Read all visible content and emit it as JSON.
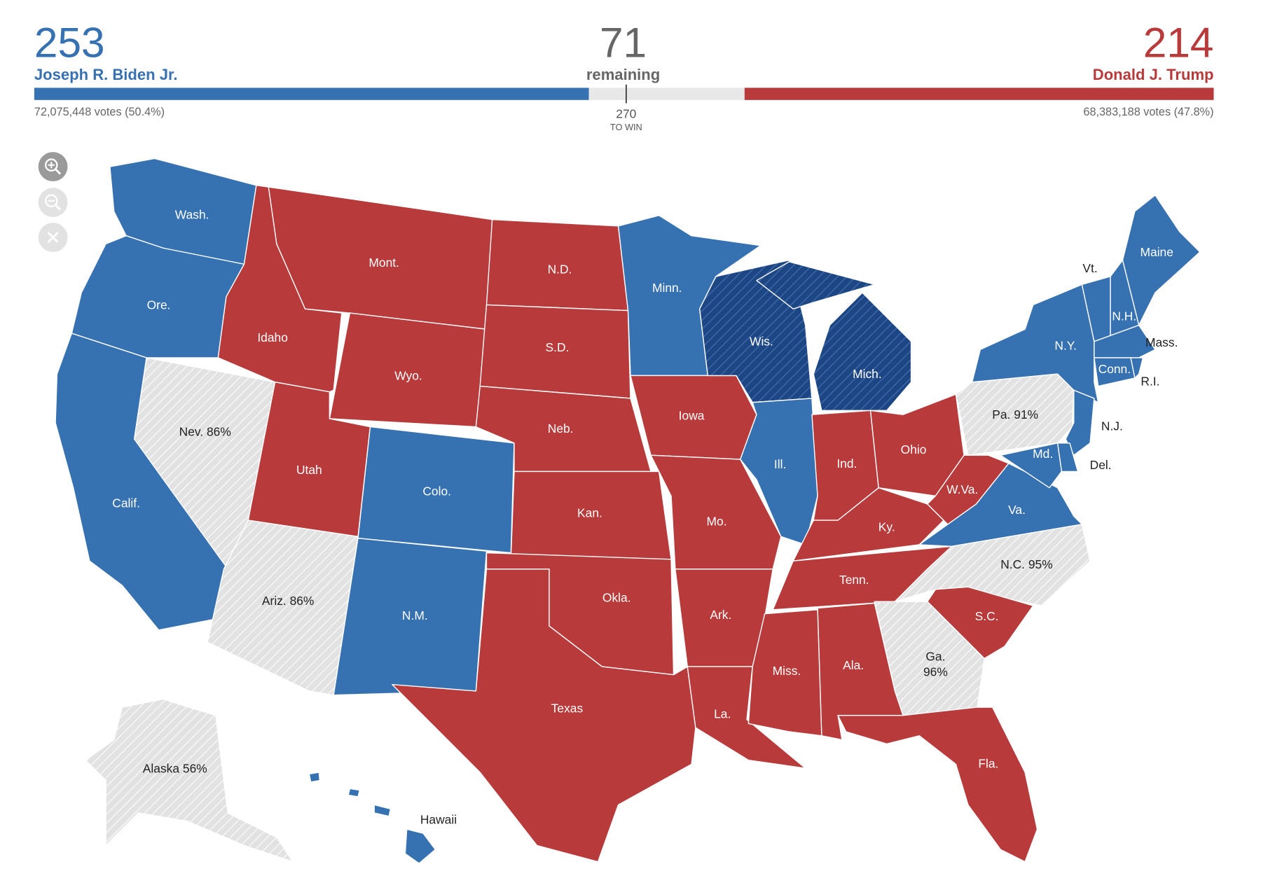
{
  "header": {
    "biden": {
      "electoral_votes": 253,
      "name": "Joseph R. Biden Jr.",
      "votes_label": "72,075,448 votes (50.4%)"
    },
    "remaining": {
      "value": 71,
      "label": "remaining"
    },
    "threshold": {
      "value": 270,
      "label": "TO WIN"
    },
    "trump": {
      "electoral_votes": 214,
      "name": "Donald J. Trump",
      "votes_label": "68,383,188 votes (47.8%)"
    }
  },
  "map": {
    "colors": {
      "biden": "#3671b2",
      "trump": "#b83a3a",
      "leaning-biden": "#1d4685",
      "pending": "#e2e2e2"
    },
    "states": [
      {
        "lines": [
          "Wash."
        ],
        "status": "biden"
      },
      {
        "lines": [
          "Ore."
        ],
        "status": "biden"
      },
      {
        "lines": [
          "Calif."
        ],
        "status": "biden"
      },
      {
        "lines": [
          "Nev. 86%"
        ],
        "status": "pending"
      },
      {
        "lines": [
          "Idaho"
        ],
        "status": "trump"
      },
      {
        "lines": [
          "Mont."
        ],
        "status": "trump"
      },
      {
        "lines": [
          "Wyo."
        ],
        "status": "trump"
      },
      {
        "lines": [
          "Utah"
        ],
        "status": "trump"
      },
      {
        "lines": [
          "Ariz. 86%"
        ],
        "status": "pending"
      },
      {
        "lines": [
          "Colo."
        ],
        "status": "biden"
      },
      {
        "lines": [
          "N.M."
        ],
        "status": "biden"
      },
      {
        "lines": [
          "N.D."
        ],
        "status": "trump"
      },
      {
        "lines": [
          "S.D."
        ],
        "status": "trump"
      },
      {
        "lines": [
          "Neb."
        ],
        "status": "trump"
      },
      {
        "lines": [
          "Kan."
        ],
        "status": "trump"
      },
      {
        "lines": [
          "Okla."
        ],
        "status": "trump"
      },
      {
        "lines": [
          "Texas"
        ],
        "status": "trump"
      },
      {
        "lines": [
          "Minn."
        ],
        "status": "biden"
      },
      {
        "lines": [
          "Iowa"
        ],
        "status": "trump"
      },
      {
        "lines": [
          "Mo."
        ],
        "status": "trump"
      },
      {
        "lines": [
          "Ark."
        ],
        "status": "trump"
      },
      {
        "lines": [
          "La."
        ],
        "status": "trump"
      },
      {
        "lines": [
          "Wis."
        ],
        "status": "leaning-biden"
      },
      {
        "lines": [
          "Ill."
        ],
        "status": "biden"
      },
      {
        "lines": [
          "Mich."
        ],
        "status": "leaning-biden"
      },
      {
        "lines": [
          "Ind."
        ],
        "status": "trump"
      },
      {
        "lines": [
          "Ohio"
        ],
        "status": "trump"
      },
      {
        "lines": [
          "Ky."
        ],
        "status": "trump"
      },
      {
        "lines": [
          "Tenn."
        ],
        "status": "trump"
      },
      {
        "lines": [
          "W.Va."
        ],
        "status": "trump"
      },
      {
        "lines": [
          "Va."
        ],
        "status": "biden"
      },
      {
        "lines": [
          "N.C. 95%"
        ],
        "status": "pending"
      },
      {
        "lines": [
          "S.C."
        ],
        "status": "trump"
      },
      {
        "lines": [
          "Ga.",
          "96%"
        ],
        "status": "pending"
      },
      {
        "lines": [
          "Ala."
        ],
        "status": "trump"
      },
      {
        "lines": [
          "Miss."
        ],
        "status": "trump"
      },
      {
        "lines": [
          "Fla."
        ],
        "status": "trump"
      },
      {
        "lines": [
          "Pa. 91%"
        ],
        "status": "pending"
      },
      {
        "lines": [
          "N.Y."
        ],
        "status": "biden"
      },
      {
        "lines": [
          "N.J."
        ],
        "status": "biden"
      },
      {
        "lines": [
          "Del."
        ],
        "status": "biden"
      },
      {
        "lines": [
          "Md."
        ],
        "status": "biden"
      },
      {
        "lines": [
          "Vt."
        ],
        "status": "biden"
      },
      {
        "lines": [
          "N.H."
        ],
        "status": "biden"
      },
      {
        "lines": [
          "Maine"
        ],
        "status": "biden"
      },
      {
        "lines": [
          "Mass."
        ],
        "status": "biden"
      },
      {
        "lines": [
          "Conn."
        ],
        "status": "biden"
      },
      {
        "lines": [
          "R.I."
        ],
        "status": "biden"
      },
      {
        "lines": [
          "Alaska 56%"
        ],
        "status": "pending"
      },
      {
        "lines": [
          "Hawaii"
        ],
        "status": "biden"
      }
    ]
  }
}
